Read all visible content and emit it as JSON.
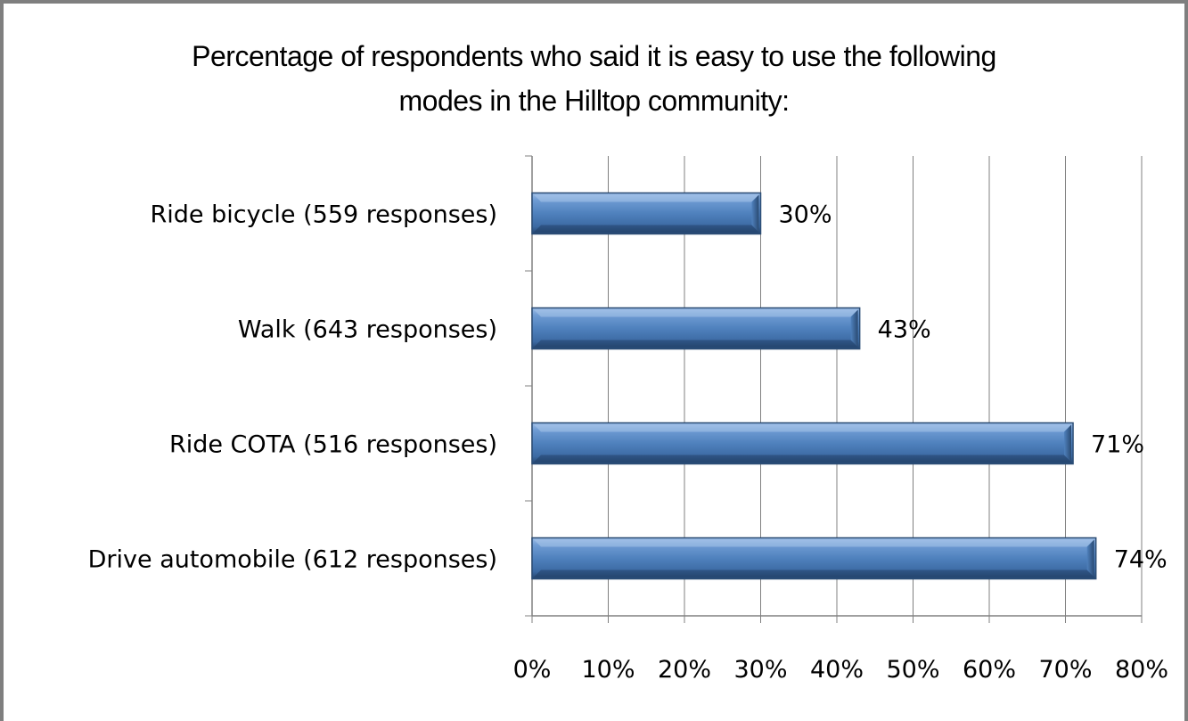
{
  "chart_data": {
    "type": "bar",
    "orientation": "horizontal",
    "title_lines": [
      "Percentage of respondents who said it is easy to use the following",
      "modes in the Hilltop community:"
    ],
    "categories": [
      "Ride bicycle (559 responses)",
      "Walk (643 responses)",
      "Ride COTA (516 responses)",
      "Drive automobile (612 responses)"
    ],
    "values": [
      30,
      43,
      71,
      74
    ],
    "data_labels": [
      "30%",
      "43%",
      "71%",
      "74%"
    ],
    "x_ticks": [
      "0%",
      "10%",
      "20%",
      "30%",
      "40%",
      "50%",
      "60%",
      "70%",
      "80%"
    ],
    "xlim": [
      0,
      80
    ],
    "grid": "vertical",
    "legend": "none",
    "colors": {
      "bar_fill": "#4f81bd",
      "bar_light": "#8db3e2",
      "bar_dark": "#2c4d75",
      "gridline": "#808080",
      "frame": "#7f7f7f"
    }
  }
}
